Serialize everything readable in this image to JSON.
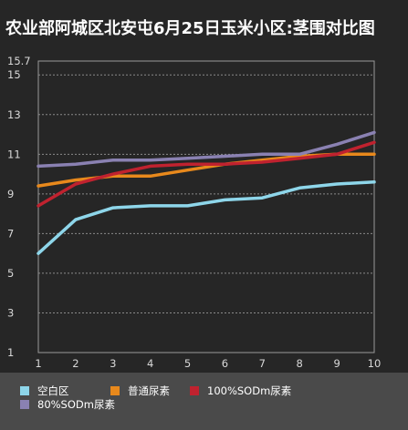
{
  "chart_data": {
    "type": "line",
    "title": "农业部阿城区北安屯6月25日玉米小区:茎围对比图",
    "xlabel": "",
    "ylabel": "",
    "x": [
      1,
      2,
      3,
      4,
      5,
      6,
      7,
      8,
      9,
      10
    ],
    "ylim": [
      1,
      15.7
    ],
    "yticks": [
      "1",
      "3",
      "5",
      "7",
      "9",
      "11",
      "13",
      "15",
      "15.7"
    ],
    "grid": true,
    "legend_position": "bottom",
    "series": [
      {
        "name": "空白区",
        "color": "#8ed6ea",
        "values": [
          6.0,
          7.7,
          8.3,
          8.4,
          8.4,
          8.7,
          8.8,
          9.3,
          9.5,
          9.6
        ]
      },
      {
        "name": "普通尿素",
        "color": "#e8891c",
        "values": [
          9.4,
          9.7,
          9.9,
          9.9,
          10.2,
          10.5,
          10.7,
          10.9,
          11.0,
          11.0
        ]
      },
      {
        "name": "100%SODm尿素",
        "color": "#c0222f",
        "values": [
          8.4,
          9.5,
          10.0,
          10.4,
          10.5,
          10.5,
          10.6,
          10.8,
          11.0,
          11.6
        ]
      },
      {
        "name": "80%SODm尿素",
        "color": "#8a81b2",
        "values": [
          10.4,
          10.5,
          10.7,
          10.7,
          10.8,
          10.9,
          11.0,
          11.0,
          11.5,
          12.1
        ]
      }
    ]
  }
}
